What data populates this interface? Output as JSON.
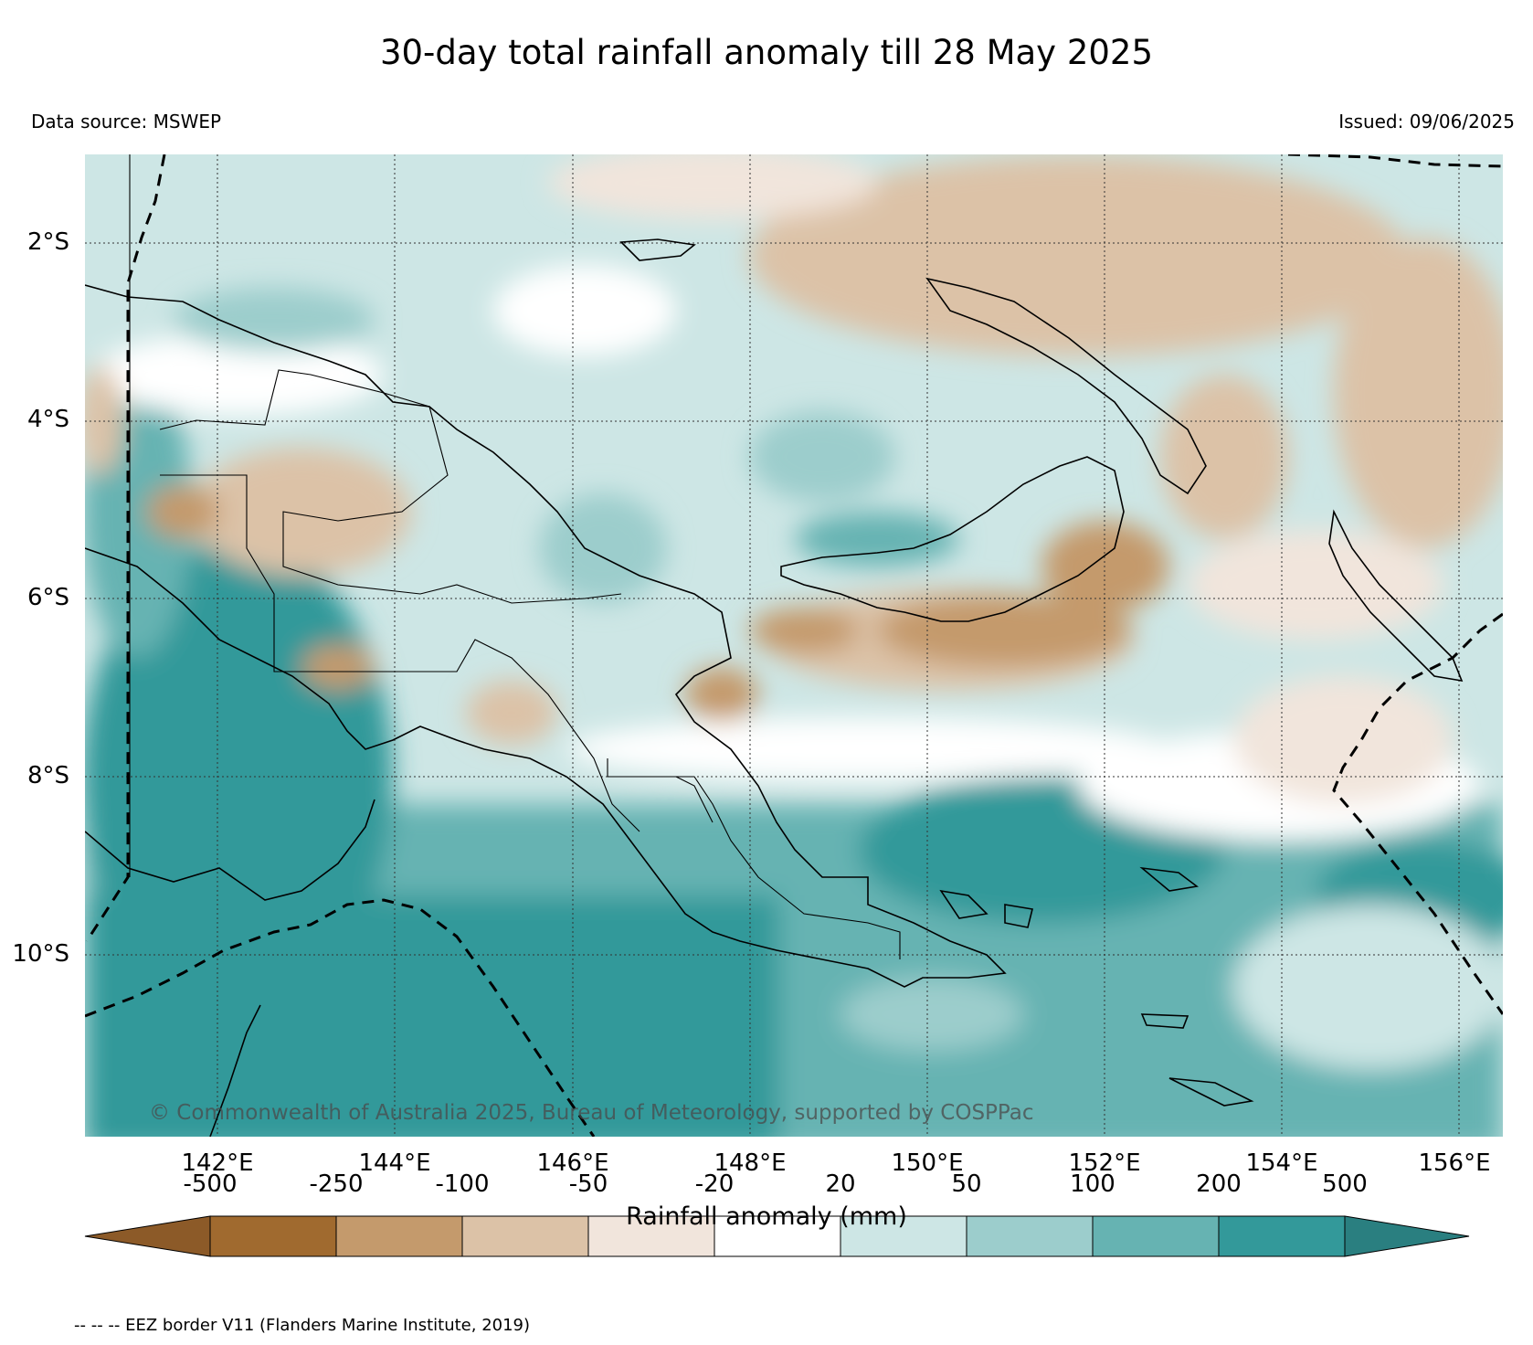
{
  "title": "30-day total rainfall anomaly till 28 May 2025",
  "data_source": "Data source: MSWEP",
  "issued": "Issued: 09/06/2025",
  "copyright": "© Commonwealth of Australia 2025, Bureau of Meteorology, supported by COSPPac",
  "latitude_labels": [
    "2°S",
    "4°S",
    "6°S",
    "8°S",
    "10°S"
  ],
  "longitude_labels": [
    "142°E",
    "144°E",
    "146°E",
    "148°E",
    "150°E",
    "152°E",
    "154°E",
    "156°E"
  ],
  "colorbar": {
    "title": "Rainfall anomaly (mm)",
    "tick_labels": [
      "-500",
      "-250",
      "-100",
      "-50",
      "-20",
      "20",
      "50",
      "100",
      "200",
      "500"
    ],
    "colors": [
      "#a06a2f",
      "#c49a6c",
      "#dcc2a7",
      "#f1e5dc",
      "#ffffff",
      "#cde6e5",
      "#9ccdcc",
      "#66b3b2",
      "#33999a",
      "#2a7f80",
      "#8c5a28"
    ]
  },
  "eez_note": "-- -- -- EEZ border V11 (Flanders Marine Institute, 2019)"
}
